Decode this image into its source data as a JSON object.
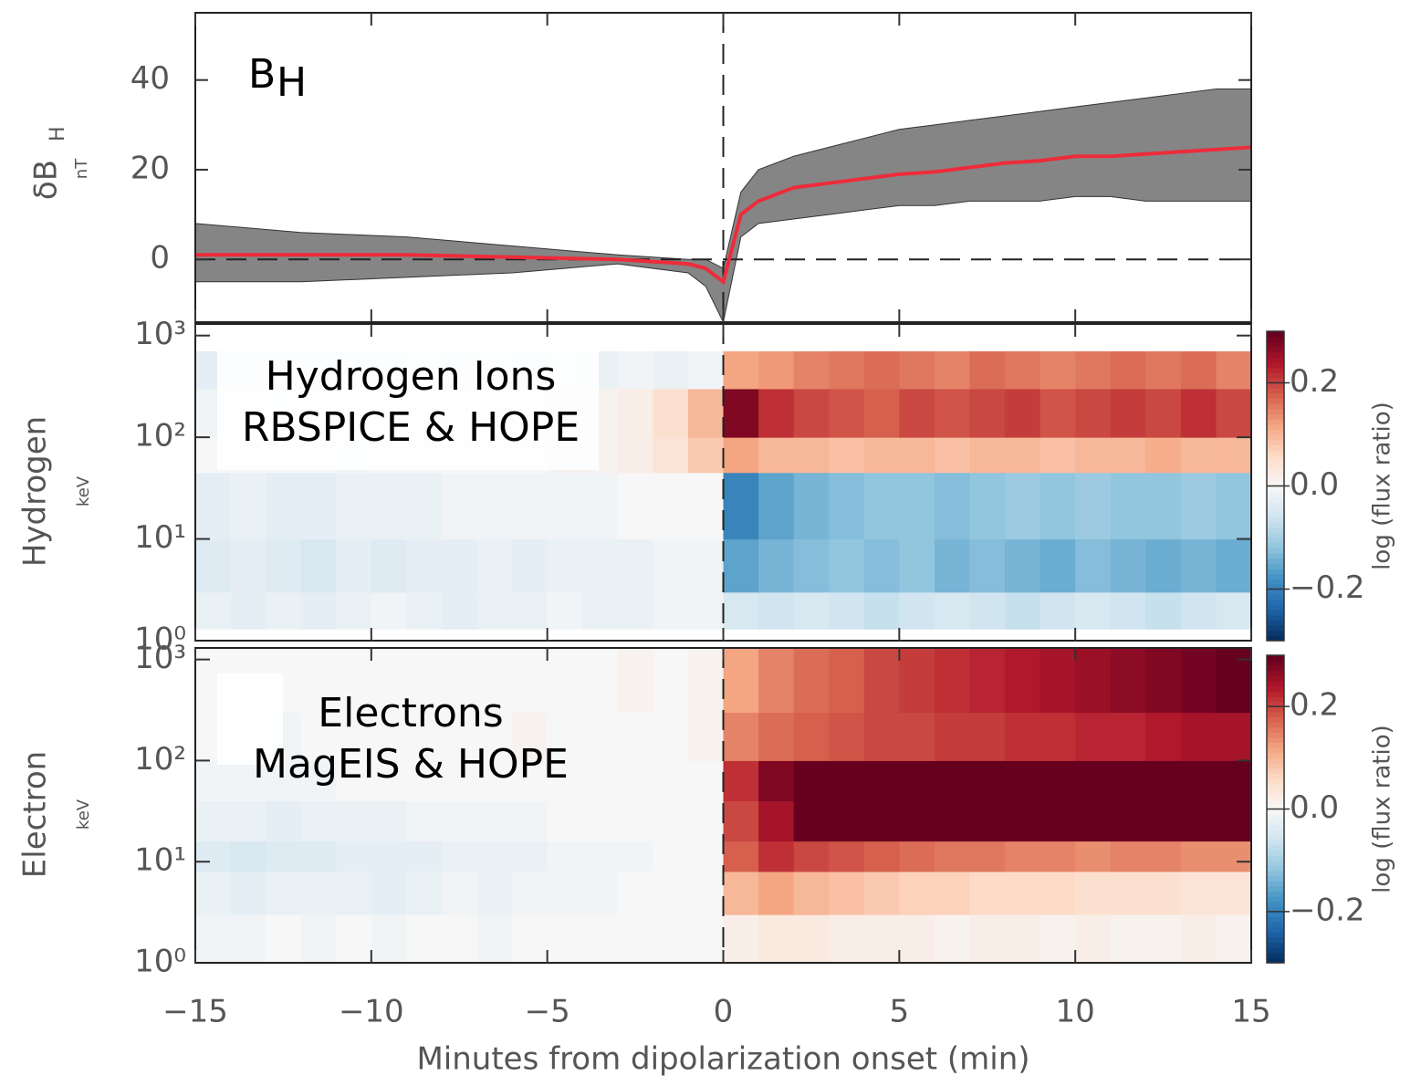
{
  "chart_data": [
    {
      "type": "line",
      "annotation": "B",
      "annotation_sub": "H",
      "ylabel": "δB",
      "ylabel_sub": "H",
      "yunit": "nT",
      "x": [
        -15,
        -12,
        -9,
        -6,
        -3,
        -1,
        -0.5,
        0,
        0.5,
        1,
        2,
        3,
        4,
        5,
        6,
        7,
        8,
        9,
        10,
        11,
        12,
        13,
        14,
        15
      ],
      "values": [
        1,
        1,
        1,
        0.5,
        0,
        -1,
        -2,
        -5,
        10,
        13,
        16,
        17,
        18,
        19,
        19.5,
        20.5,
        21.5,
        22,
        23,
        23,
        23.5,
        24,
        24.5,
        25
      ],
      "color": "#ee2b3a",
      "band_upper": [
        8,
        6,
        5,
        3,
        1,
        0,
        0,
        -2,
        15,
        20,
        23,
        25,
        27,
        29,
        30,
        31,
        32,
        33,
        34,
        35,
        36,
        37,
        38,
        38
      ],
      "band_lower": [
        -5,
        -5,
        -4,
        -3,
        -1,
        -3,
        -6,
        -14,
        5,
        8,
        9,
        10,
        11,
        12,
        12,
        13,
        13,
        13,
        14,
        14,
        13,
        13,
        13,
        13
      ],
      "band_color": "#858585",
      "xlim": [
        -15,
        15
      ],
      "ylim": [
        -14,
        55
      ],
      "yticks": [
        0,
        20,
        40
      ],
      "vline": 0,
      "hline": 0
    },
    {
      "type": "heatmap",
      "annotation": [
        "Hydrogen Ions",
        "RBSPICE & HOPE"
      ],
      "ylabel": "Hydrogen",
      "yunit": "keV",
      "xlim": [
        -15,
        15
      ],
      "ylim": [
        1,
        1300
      ],
      "ylog": true,
      "yticks": [
        {
          "value": 1,
          "label": "10⁰"
        },
        {
          "value": 10,
          "label": "10¹"
        },
        {
          "value": 100,
          "label": "10²"
        },
        {
          "value": 1000,
          "label": "10³"
        }
      ],
      "x_edges": [
        -15,
        -14,
        -13,
        -12,
        -11,
        -10,
        -9,
        -8,
        -7,
        -6,
        -5,
        -4,
        -3,
        -2,
        -1,
        0,
        1,
        2,
        3,
        4,
        5,
        6,
        7,
        8,
        9,
        10,
        11,
        12,
        13,
        14,
        15
      ],
      "y_edges": [
        1.3,
        3,
        10,
        45,
        100,
        300,
        700
      ],
      "values": [
        [
          -0.02,
          -0.03,
          -0.02,
          -0.03,
          -0.02,
          -0.01,
          -0.02,
          -0.03,
          -0.02,
          -0.02,
          -0.01,
          -0.02,
          -0.02,
          -0.01,
          -0.01,
          -0.05,
          -0.06,
          -0.05,
          -0.06,
          -0.07,
          -0.06,
          -0.05,
          -0.06,
          -0.07,
          -0.06,
          -0.05,
          -0.06,
          -0.07,
          -0.06,
          -0.05
        ],
        [
          -0.04,
          -0.03,
          -0.04,
          -0.05,
          -0.03,
          -0.04,
          -0.03,
          -0.03,
          -0.02,
          -0.03,
          -0.02,
          -0.02,
          -0.02,
          -0.01,
          -0.01,
          -0.16,
          -0.14,
          -0.13,
          -0.12,
          -0.13,
          -0.12,
          -0.14,
          -0.13,
          -0.14,
          -0.15,
          -0.13,
          -0.14,
          -0.15,
          -0.14,
          -0.15
        ],
        [
          -0.03,
          -0.02,
          -0.03,
          -0.03,
          -0.02,
          -0.02,
          -0.02,
          -0.01,
          -0.01,
          -0.01,
          -0.01,
          -0.01,
          0,
          0,
          0,
          -0.2,
          -0.16,
          -0.14,
          -0.13,
          -0.12,
          -0.12,
          -0.13,
          -0.12,
          -0.11,
          -0.12,
          -0.11,
          -0.12,
          -0.12,
          -0.11,
          -0.12
        ],
        [
          0,
          0,
          0,
          0,
          -0.01,
          0,
          0,
          0,
          0,
          0,
          0.01,
          0.01,
          0.02,
          0.04,
          0.08,
          0.12,
          0.1,
          0.1,
          0.09,
          0.1,
          0.1,
          0.09,
          0.1,
          0.1,
          0.09,
          0.1,
          0.1,
          0.11,
          0.1,
          0.1
        ],
        [
          -0.01,
          0,
          -0.01,
          0,
          0,
          0,
          0,
          0,
          0,
          0,
          0.01,
          0.01,
          0.02,
          0.05,
          0.1,
          0.28,
          0.22,
          0.2,
          0.19,
          0.18,
          0.2,
          0.19,
          0.2,
          0.21,
          0.19,
          0.2,
          0.21,
          0.2,
          0.22,
          0.2
        ],
        [
          -0.03,
          -0.02,
          -0.02,
          -0.03,
          -0.02,
          -0.03,
          -0.01,
          -0.02,
          -0.01,
          -0.02,
          -0.01,
          -0.02,
          -0.01,
          -0.02,
          -0.01,
          0.12,
          0.13,
          0.15,
          0.16,
          0.17,
          0.16,
          0.15,
          0.17,
          0.16,
          0.15,
          0.16,
          0.17,
          0.16,
          0.17,
          0.15
        ]
      ],
      "colormap": [
        "#053061",
        "#2166ac",
        "#4393c3",
        "#92c5de",
        "#d1e5f0",
        "#f7f7f7",
        "#fddbc7",
        "#f4a582",
        "#d6604d",
        "#b2182b",
        "#67001f"
      ],
      "clim": [
        -0.3,
        0.3
      ],
      "colorbar_ticks": [
        {
          "value": -0.2,
          "label": "−0.2"
        },
        {
          "value": 0,
          "label": "0.0"
        },
        0.2
      ],
      "colorbar_label": "log (flux ratio)",
      "vline": 0
    },
    {
      "type": "heatmap",
      "annotation": [
        "Electrons",
        "MagEIS & HOPE"
      ],
      "ylabel": "Electron",
      "yunit": "keV",
      "xlim": [
        -15,
        15
      ],
      "ylim": [
        1,
        1300
      ],
      "ylog": true,
      "yticks": [
        {
          "value": 1,
          "label": "10⁰"
        },
        {
          "value": 10,
          "label": "10¹"
        },
        {
          "value": 100,
          "label": "10²"
        },
        {
          "value": 1000,
          "label": "10³"
        }
      ],
      "xticks": [
        {
          "value": -15,
          "label": "−15"
        },
        {
          "value": -10,
          "label": "−10"
        },
        {
          "value": -5,
          "label": "−5"
        },
        0,
        5,
        10,
        15
      ],
      "xlabel": "Minutes from dipolarization onset (min)",
      "x_edges": [
        -15,
        -14,
        -13,
        -12,
        -11,
        -10,
        -9,
        -8,
        -7,
        -6,
        -5,
        -4,
        -3,
        -2,
        -1,
        0,
        1,
        2,
        3,
        4,
        5,
        6,
        7,
        8,
        9,
        10,
        11,
        12,
        13,
        14,
        15
      ],
      "y_edges": [
        1,
        3,
        8,
        16,
        40,
        100,
        300,
        1300
      ],
      "values": [
        [
          -0.01,
          -0.01,
          0,
          -0.01,
          0,
          -0.01,
          0,
          0,
          -0.01,
          0,
          0,
          0,
          0,
          0,
          0,
          0.02,
          0.03,
          0.03,
          0.02,
          0.02,
          0.02,
          0.01,
          0.02,
          0.02,
          0.01,
          0.02,
          0.01,
          0.01,
          0.02,
          0.01
        ],
        [
          -0.02,
          -0.03,
          -0.02,
          -0.02,
          -0.02,
          -0.03,
          -0.02,
          -0.01,
          -0.02,
          -0.01,
          -0.01,
          -0.01,
          0,
          0,
          0,
          0.1,
          0.12,
          0.1,
          0.09,
          0.08,
          0.07,
          0.07,
          0.06,
          0.06,
          0.06,
          0.05,
          0.05,
          0.05,
          0.04,
          0.04
        ],
        [
          -0.04,
          -0.05,
          -0.04,
          -0.04,
          -0.03,
          -0.03,
          -0.03,
          -0.02,
          -0.02,
          -0.02,
          -0.01,
          -0.01,
          -0.01,
          0,
          0,
          0.18,
          0.22,
          0.2,
          0.19,
          0.18,
          0.17,
          0.16,
          0.16,
          0.15,
          0.15,
          0.14,
          0.15,
          0.15,
          0.14,
          0.14
        ],
        [
          -0.02,
          -0.02,
          -0.03,
          -0.02,
          -0.02,
          -0.02,
          -0.01,
          -0.01,
          -0.01,
          -0.01,
          0,
          0,
          0,
          0,
          0,
          0.2,
          0.25,
          0.32,
          0.35,
          0.36,
          0.36,
          0.37,
          0.36,
          0.36,
          0.35,
          0.36,
          0.35,
          0.36,
          0.35,
          0.35
        ],
        [
          -0.01,
          -0.01,
          -0.01,
          -0.01,
          0,
          0,
          0,
          0,
          0,
          0,
          0,
          0,
          0,
          0,
          0,
          0.22,
          0.28,
          0.3,
          0.32,
          0.33,
          0.34,
          0.34,
          0.35,
          0.34,
          0.33,
          0.34,
          0.33,
          0.34,
          0.33,
          0.33
        ],
        [
          0,
          0,
          -0.01,
          0,
          0,
          0,
          0,
          0,
          0,
          0.01,
          0,
          0,
          0,
          0,
          0.01,
          0.15,
          0.17,
          0.18,
          0.19,
          0.2,
          0.2,
          0.21,
          0.21,
          0.22,
          0.22,
          0.23,
          0.23,
          0.24,
          0.25,
          0.25
        ],
        [
          0,
          0,
          0,
          0,
          0,
          0,
          0,
          0,
          0,
          0,
          0,
          0,
          0.01,
          0,
          0.01,
          0.12,
          0.15,
          0.17,
          0.18,
          0.2,
          0.21,
          0.22,
          0.23,
          0.24,
          0.25,
          0.26,
          0.27,
          0.28,
          0.29,
          0.3
        ]
      ],
      "colormap": [
        "#053061",
        "#2166ac",
        "#4393c3",
        "#92c5de",
        "#d1e5f0",
        "#f7f7f7",
        "#fddbc7",
        "#f4a582",
        "#d6604d",
        "#b2182b",
        "#67001f"
      ],
      "clim": [
        -0.3,
        0.3
      ],
      "colorbar_ticks": [
        {
          "value": -0.2,
          "label": "−0.2"
        },
        {
          "value": 0,
          "label": "0.0"
        },
        0.2
      ],
      "colorbar_label": "log (flux ratio)",
      "vline": 0
    }
  ]
}
